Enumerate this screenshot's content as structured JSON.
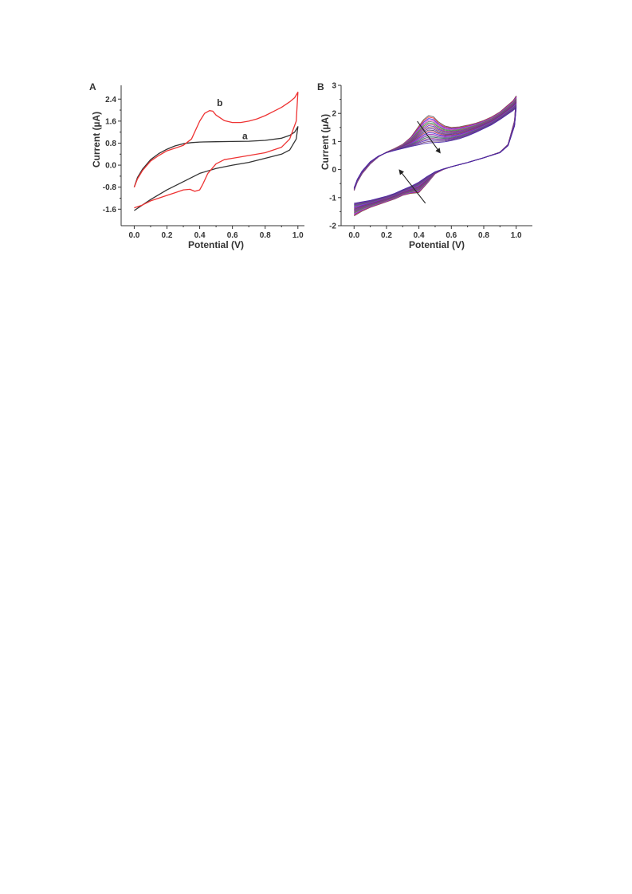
{
  "chart_data": [
    {
      "type": "line",
      "panel_label": "A",
      "xlabel": "Potential (V)",
      "ylabel": "Current (µA)",
      "xlim": [
        -0.08,
        1.04
      ],
      "ylim": [
        -2.2,
        2.9
      ],
      "xticks": [
        0.0,
        0.2,
        0.4,
        0.6,
        0.8,
        1.0
      ],
      "xtick_labels": [
        "0.0",
        "0.2",
        "0.4",
        "0.6",
        "0.8",
        "1.0"
      ],
      "yticks": [
        -1.6,
        -0.8,
        0.0,
        0.8,
        1.6,
        2.4
      ],
      "ytick_labels": [
        "-1.6",
        "-0.8",
        "0.0",
        "0.8",
        "1.6",
        "2.4"
      ],
      "grid": false,
      "series": [
        {
          "name": "a",
          "color": "#333333",
          "label_at": [
            0.66,
            0.95
          ],
          "x": [
            0.0,
            0.02,
            0.05,
            0.1,
            0.15,
            0.2,
            0.25,
            0.3,
            0.35,
            0.4,
            0.5,
            0.6,
            0.7,
            0.8,
            0.9,
            0.95,
            0.98,
            1.0,
            0.99,
            0.95,
            0.9,
            0.8,
            0.7,
            0.6,
            0.5,
            0.4,
            0.3,
            0.2,
            0.1,
            0.05,
            0.0
          ],
          "y": [
            -0.8,
            -0.45,
            -0.15,
            0.2,
            0.42,
            0.58,
            0.7,
            0.78,
            0.82,
            0.84,
            0.85,
            0.86,
            0.87,
            0.9,
            0.98,
            1.08,
            1.2,
            1.4,
            0.95,
            0.55,
            0.4,
            0.25,
            0.1,
            0.0,
            -0.12,
            -0.3,
            -0.6,
            -0.9,
            -1.25,
            -1.45,
            -1.65
          ]
        },
        {
          "name": "b",
          "color": "#ee3333",
          "label_at": [
            0.505,
            2.15
          ],
          "x": [
            0.0,
            0.02,
            0.05,
            0.1,
            0.15,
            0.2,
            0.25,
            0.3,
            0.35,
            0.4,
            0.43,
            0.46,
            0.48,
            0.5,
            0.55,
            0.6,
            0.65,
            0.7,
            0.75,
            0.8,
            0.85,
            0.9,
            0.95,
            0.98,
            1.0,
            0.99,
            0.95,
            0.9,
            0.8,
            0.7,
            0.6,
            0.55,
            0.5,
            0.45,
            0.42,
            0.4,
            0.37,
            0.34,
            0.3,
            0.25,
            0.2,
            0.1,
            0.05,
            0.0
          ],
          "y": [
            -0.8,
            -0.5,
            -0.2,
            0.15,
            0.35,
            0.52,
            0.62,
            0.72,
            0.95,
            1.6,
            1.88,
            1.98,
            1.96,
            1.82,
            1.62,
            1.55,
            1.55,
            1.6,
            1.68,
            1.8,
            1.95,
            2.1,
            2.3,
            2.45,
            2.65,
            1.6,
            0.95,
            0.65,
            0.45,
            0.35,
            0.25,
            0.2,
            0.05,
            -0.3,
            -0.68,
            -0.9,
            -0.95,
            -0.88,
            -0.9,
            -1.0,
            -1.1,
            -1.3,
            -1.45,
            -1.55
          ]
        }
      ]
    },
    {
      "type": "line",
      "panel_label": "B",
      "xlabel": "Potential (V)",
      "ylabel": "Current (µA)",
      "xlim": [
        -0.08,
        1.1
      ],
      "ylim": [
        -2.0,
        3.0
      ],
      "xticks": [
        0.0,
        0.2,
        0.4,
        0.6,
        0.8,
        1.0
      ],
      "xtick_labels": [
        "0.0",
        "0.2",
        "0.4",
        "0.6",
        "0.8",
        "1.0"
      ],
      "yticks": [
        -2,
        -1,
        0,
        1,
        2,
        3
      ],
      "ytick_labels": [
        "-2",
        "-1",
        "0",
        "1",
        "2",
        "3"
      ],
      "grid": false,
      "num_scans": 20,
      "scan_colors": [
        "#555555",
        "#ff3333",
        "#3333ee",
        "#ee33cc",
        "#777777",
        "#33aa33",
        "#cc3366",
        "#5533cc",
        "#aa6633",
        "#7733aa"
      ],
      "first_scan": {
        "x": [
          0.0,
          0.02,
          0.05,
          0.1,
          0.15,
          0.2,
          0.25,
          0.3,
          0.35,
          0.4,
          0.43,
          0.46,
          0.49,
          0.52,
          0.56,
          0.6,
          0.65,
          0.7,
          0.75,
          0.8,
          0.85,
          0.9,
          0.95,
          0.98,
          1.0,
          0.99,
          0.95,
          0.9,
          0.8,
          0.7,
          0.6,
          0.55,
          0.5,
          0.45,
          0.4,
          0.35,
          0.3,
          0.25,
          0.2,
          0.1,
          0.05,
          0.0
        ],
        "y": [
          -0.75,
          -0.45,
          -0.15,
          0.2,
          0.45,
          0.62,
          0.75,
          0.9,
          1.15,
          1.55,
          1.78,
          1.92,
          1.88,
          1.7,
          1.55,
          1.5,
          1.52,
          1.58,
          1.65,
          1.75,
          1.88,
          2.05,
          2.3,
          2.45,
          2.62,
          1.75,
          0.9,
          0.62,
          0.42,
          0.25,
          0.1,
          0.0,
          -0.15,
          -0.5,
          -0.82,
          -0.85,
          -0.92,
          -1.05,
          -1.15,
          -1.35,
          -1.48,
          -1.65
        ]
      },
      "last_scan": {
        "x": [
          0.0,
          0.02,
          0.05,
          0.1,
          0.15,
          0.2,
          0.25,
          0.3,
          0.35,
          0.4,
          0.43,
          0.46,
          0.49,
          0.52,
          0.56,
          0.6,
          0.65,
          0.7,
          0.75,
          0.8,
          0.85,
          0.9,
          0.95,
          0.98,
          1.0,
          0.99,
          0.95,
          0.9,
          0.8,
          0.7,
          0.6,
          0.55,
          0.5,
          0.45,
          0.4,
          0.35,
          0.3,
          0.25,
          0.2,
          0.1,
          0.05,
          0.0
        ],
        "y": [
          -0.65,
          -0.35,
          -0.05,
          0.28,
          0.48,
          0.6,
          0.68,
          0.75,
          0.82,
          0.88,
          0.92,
          0.95,
          0.96,
          0.97,
          0.99,
          1.03,
          1.1,
          1.2,
          1.32,
          1.46,
          1.6,
          1.78,
          1.98,
          2.1,
          2.2,
          1.55,
          0.85,
          0.6,
          0.42,
          0.25,
          0.1,
          0.02,
          -0.08,
          -0.25,
          -0.45,
          -0.6,
          -0.72,
          -0.85,
          -0.95,
          -1.1,
          -1.15,
          -1.2
        ]
      },
      "arrows": [
        {
          "from": [
            0.39,
            1.72
          ],
          "to": [
            0.53,
            0.6
          ]
        },
        {
          "from": [
            0.44,
            -1.2
          ],
          "to": [
            0.28,
            -0.02
          ]
        }
      ]
    }
  ]
}
